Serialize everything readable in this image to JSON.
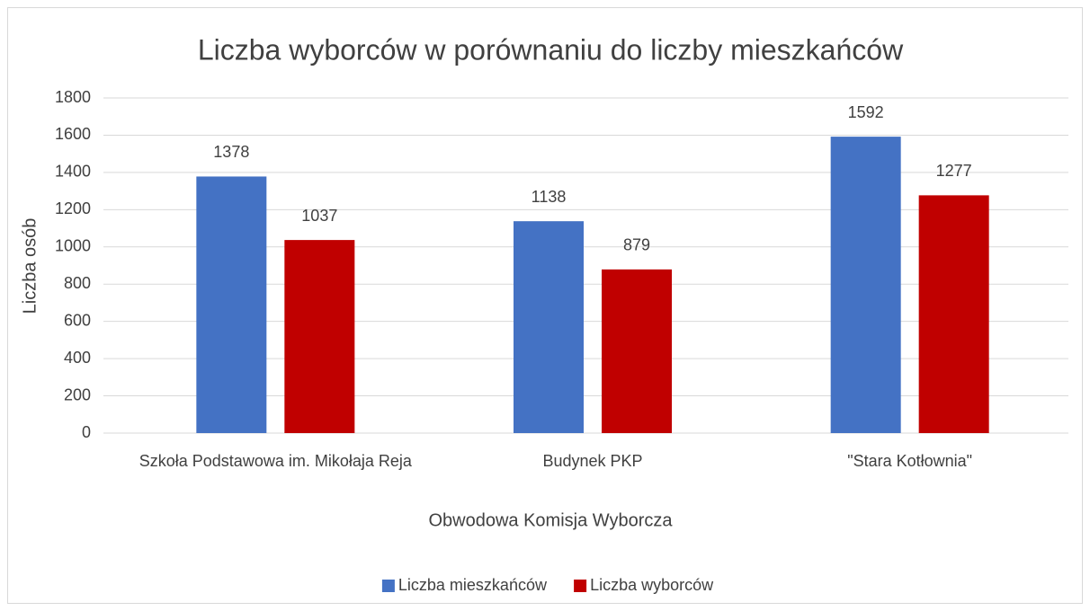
{
  "chart_data": {
    "type": "bar",
    "title": "Liczba wyborców w porównaniu do liczby mieszkańców",
    "x_label": "Obwodowa Komisja Wyborcza",
    "y_label": "Liczba osób",
    "categories": [
      "Szkoła Podstawowa im. Mikołaja Reja",
      "Budynek PKP",
      "\"Stara Kotłownia\""
    ],
    "series": [
      {
        "name": "Liczba mieszkańców",
        "color": "#4472c4",
        "values": [
          1378,
          1138,
          1592
        ]
      },
      {
        "name": "Liczba wyborców",
        "color": "#c00000",
        "values": [
          1037,
          879,
          1277
        ]
      }
    ],
    "ylim": [
      0,
      1800
    ],
    "yticks": [
      0,
      200,
      400,
      600,
      800,
      1000,
      1200,
      1400,
      1600,
      1800
    ],
    "grid": true,
    "legend": "bottom"
  }
}
